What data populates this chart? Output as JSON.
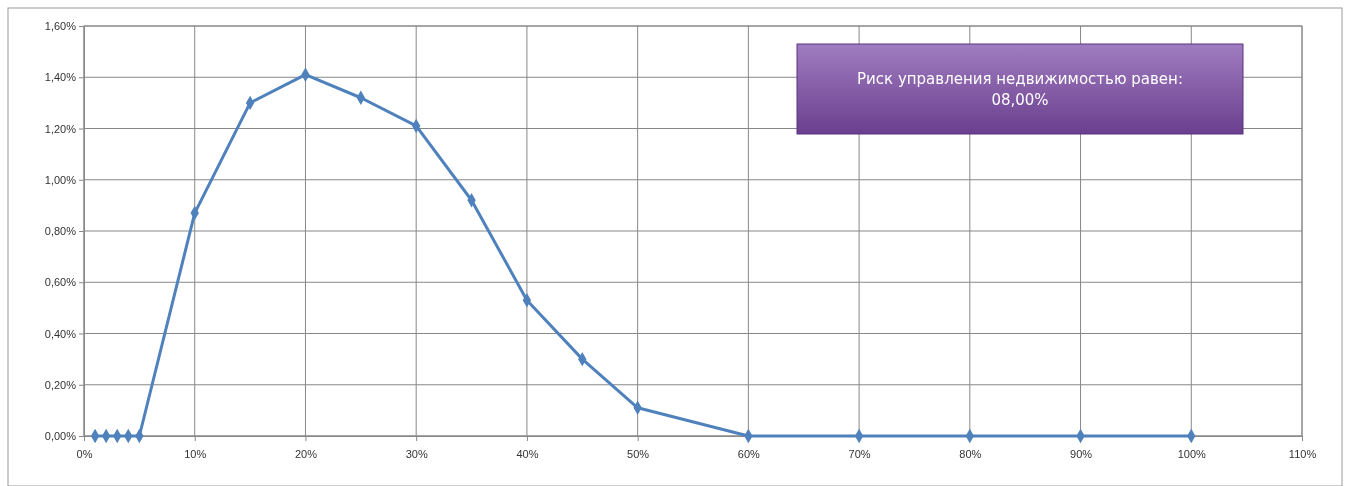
{
  "chart_data": {
    "type": "line",
    "x": [
      1,
      2,
      3,
      4,
      5,
      10,
      15,
      20,
      25,
      30,
      35,
      40,
      45,
      50,
      60,
      70,
      80,
      90,
      100
    ],
    "series": [
      {
        "color": "#4f81bd",
        "values": [
          0,
          0,
          0,
          0,
          0,
          0.87,
          1.3,
          1.41,
          1.32,
          1.21,
          0.92,
          0.53,
          0.3,
          0.11,
          0,
          0,
          0,
          0,
          0
        ]
      }
    ],
    "xlim": [
      0,
      110
    ],
    "xticks": [
      {
        "value": 0,
        "label": "0%"
      },
      {
        "value": 10,
        "label": "10%"
      },
      {
        "value": 20,
        "label": "20%"
      },
      {
        "value": 30,
        "label": "30%"
      },
      {
        "value": 40,
        "label": "40%"
      },
      {
        "value": 50,
        "label": "50%"
      },
      {
        "value": 60,
        "label": "60%"
      },
      {
        "value": 70,
        "label": "70%"
      },
      {
        "value": 80,
        "label": "80%"
      },
      {
        "value": 90,
        "label": "90%"
      },
      {
        "value": 100,
        "label": "100%"
      },
      {
        "value": 110,
        "label": "110%"
      }
    ],
    "ylim": [
      0,
      1.6
    ],
    "yticks": [
      {
        "value": 0,
        "label": "0,00%"
      },
      {
        "value": 0.2,
        "label": "0,20%"
      },
      {
        "value": 0.4,
        "label": "0,40%"
      },
      {
        "value": 0.6,
        "label": "0,60%"
      },
      {
        "value": 0.8,
        "label": "0,80%"
      },
      {
        "value": 1.0,
        "label": "1,00%"
      },
      {
        "value": 1.2,
        "label": "1,20%"
      },
      {
        "value": 1.4,
        "label": "1,40%"
      },
      {
        "value": 1.6,
        "label": "1,60%"
      }
    ],
    "grid": true,
    "marker": "diamond",
    "line_style": "solid",
    "annotations": [
      "Риск управления недвижимостью равен:\n08,00%"
    ]
  }
}
